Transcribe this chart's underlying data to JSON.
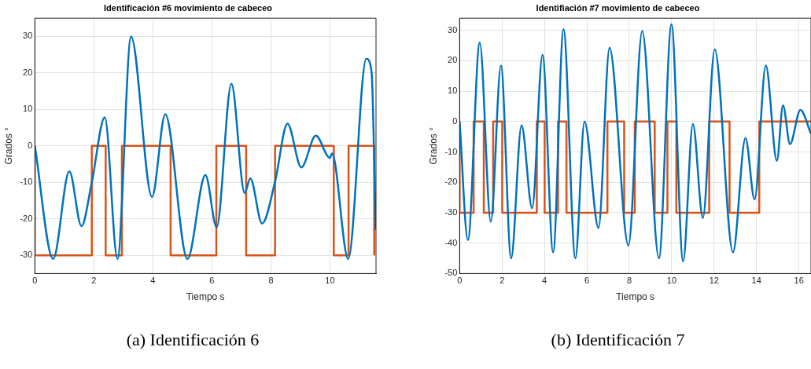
{
  "chart_data": [
    {
      "type": "line",
      "title": "Identificación #6 movimiento de cabeceo",
      "xlabel": "Tiempo s",
      "ylabel": "Grados °",
      "xlim": [
        0,
        11.56
      ],
      "xticks": [
        0,
        2,
        4,
        6,
        8,
        10
      ],
      "ylim": [
        -35,
        35
      ],
      "yticks": [
        -30,
        -20,
        -10,
        0,
        10,
        20,
        30
      ],
      "grid": true,
      "annotations": [
        "(a) Identificación 6"
      ],
      "series": [
        {
          "color": "#0072bd",
          "x": [
            0,
            0.62,
            1.17,
            1.58,
            1.93,
            2.37,
            2.8,
            3.26,
            3.97,
            4.42,
            5.17,
            5.78,
            6.16,
            6.66,
            7.11,
            7.3,
            7.7,
            8.14,
            8.56,
            9.03,
            9.52,
            10.0,
            10.07,
            10.62,
            11.23,
            11.41,
            11.55
          ],
          "values": [
            0,
            -31,
            -7,
            -22,
            -10,
            7.8,
            -31,
            30,
            -14,
            8.7,
            -31,
            -8,
            -22.3,
            17,
            -12.9,
            -8.9,
            -21.3,
            -9.8,
            6.1,
            -5.9,
            2.8,
            -3.3,
            -2.1,
            -31,
            23.9,
            20.2,
            -23
          ]
        },
        {
          "color": "#d95319",
          "x": [
            0,
            0,
            1.93,
            1.93,
            2.4,
            2.4,
            2.95,
            2.95,
            4.6,
            4.6,
            6.15,
            6.15,
            7.16,
            7.16,
            8.14,
            8.14,
            10.13,
            10.13,
            10.63,
            10.63,
            11.5,
            11.5
          ],
          "values": [
            0,
            -30,
            -30,
            0,
            0,
            -30,
            -30,
            0,
            0,
            -30,
            -30,
            0,
            0,
            -30,
            -30,
            0,
            0,
            -30,
            -30,
            0,
            0,
            -30
          ]
        }
      ]
    },
    {
      "type": "line",
      "title": "Identifiación #7 movimiento de cabeceo",
      "xlabel": "Tiempo s",
      "ylabel": "Grados °",
      "xlim": [
        0,
        16.57
      ],
      "xticks": [
        0,
        2,
        4,
        6,
        8,
        10,
        12,
        14,
        16
      ],
      "ylim": [
        -50,
        34
      ],
      "yticks": [
        -50,
        -40,
        -30,
        -20,
        -10,
        0,
        10,
        20,
        30
      ],
      "grid": true,
      "annotations": [
        "(b) Identificación 7"
      ],
      "series": [
        {
          "color": "#0072bd",
          "x": [
            0,
            0.39,
            0.95,
            1.47,
            1.95,
            2.43,
            2.92,
            3.42,
            3.91,
            4.41,
            4.9,
            5.46,
            5.89,
            6.55,
            7.07,
            7.96,
            8.61,
            9.4,
            9.99,
            10.54,
            11.0,
            11.47,
            12.03,
            12.89,
            13.48,
            13.91,
            14.44,
            14.96,
            15.25,
            15.58,
            16.07,
            16.57
          ],
          "values": [
            0,
            -39,
            26,
            -33,
            18.4,
            -45,
            -1.3,
            -28.5,
            22,
            -43,
            30.4,
            -45,
            0,
            -35,
            24.3,
            -40.8,
            29.8,
            -45,
            32,
            -46,
            -0.8,
            -31.7,
            23.8,
            -43,
            -5.5,
            -25.6,
            18.4,
            -12.9,
            5.3,
            -7.4,
            3.8,
            -4
          ]
        },
        {
          "color": "#d95319",
          "x": [
            0,
            0,
            0.66,
            0.66,
            1.14,
            1.14,
            1.58,
            1.58,
            2.01,
            2.01,
            3.64,
            3.64,
            4.01,
            4.01,
            4.64,
            4.64,
            5.04,
            5.04,
            6.97,
            6.97,
            7.76,
            7.76,
            8.26,
            8.26,
            9.2,
            9.2,
            9.8,
            9.8,
            10.22,
            10.22,
            11.77,
            11.77,
            12.73,
            12.73,
            14.13,
            14.13,
            16.57
          ],
          "values": [
            0,
            -30,
            -30,
            0,
            0,
            -30,
            -30,
            0,
            0,
            -30,
            -30,
            0,
            0,
            -30,
            -30,
            0,
            0,
            -30,
            -30,
            0,
            0,
            -30,
            -30,
            0,
            0,
            -30,
            -30,
            0,
            0,
            -30,
            -30,
            0,
            0,
            -30,
            -30,
            0,
            0
          ]
        }
      ]
    }
  ]
}
